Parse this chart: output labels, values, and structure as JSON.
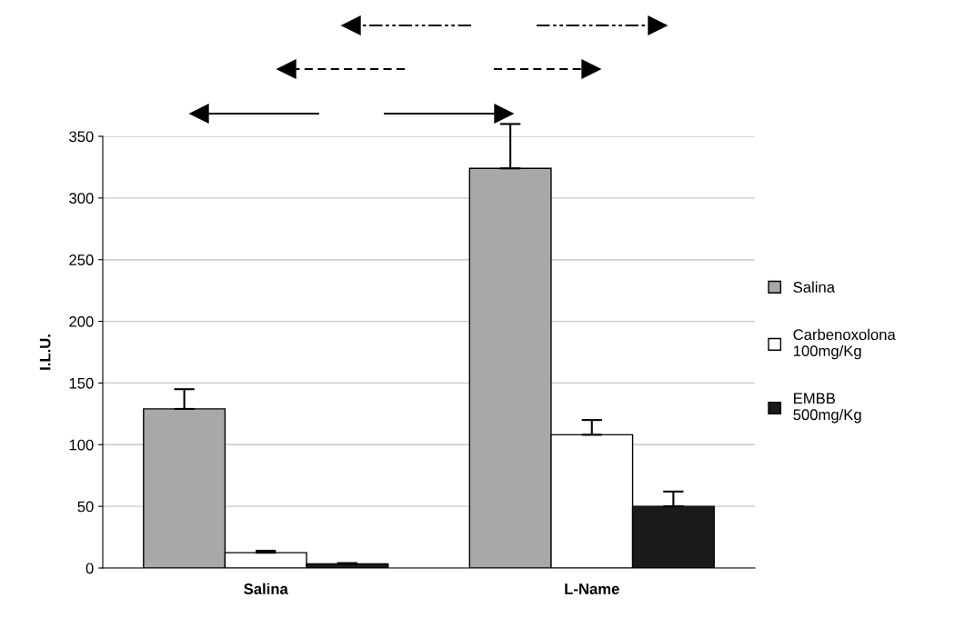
{
  "chart_data": {
    "type": "bar",
    "ylabel": "I.L.U.",
    "categories": [
      "Salina",
      "L-Name"
    ],
    "series": [
      {
        "name": "Salina",
        "color": "#a8a8a8",
        "values": [
          129,
          324
        ],
        "errors": [
          [
            129,
            145
          ],
          [
            324,
            360
          ]
        ]
      },
      {
        "name": "Carbenoxolona\n100mg/Kg",
        "color": "#ffffff",
        "values": [
          12.4,
          108
        ],
        "errors": [
          [
            12.4,
            14
          ],
          [
            108,
            120
          ]
        ]
      },
      {
        "name": "EMBB\n500mg/Kg",
        "color": "#1a1a1a",
        "values": [
          3.4,
          50
        ],
        "errors": [
          [
            3.4,
            4
          ],
          [
            50,
            62
          ]
        ]
      }
    ],
    "ylim": [
      0,
      350
    ],
    "yticks": [
      0,
      50,
      100,
      150,
      200,
      250,
      300,
      350
    ],
    "grid": "y",
    "legend": "right"
  }
}
